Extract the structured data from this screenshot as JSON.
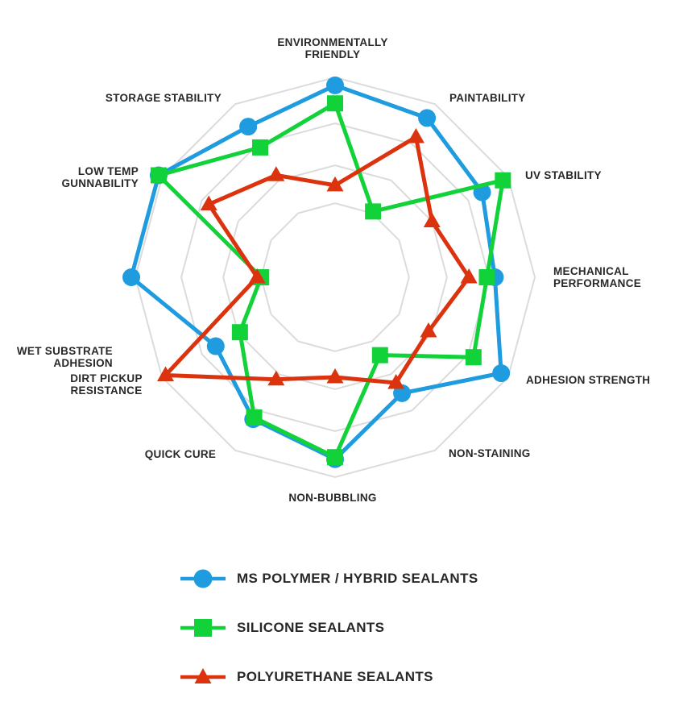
{
  "chart_data": {
    "type": "radar",
    "title": "",
    "axis_range": [
      0,
      5
    ],
    "grid_ring_values": [
      1.85,
      2.8,
      3.85,
      5
    ],
    "grid_color": "#DBDBDB",
    "grid_style": "concentric 12-sided polygons, no radial spokes",
    "legend_position": "bottom",
    "background_color": "#FFFFFF",
    "label_color": "#282828",
    "categories": [
      "ENVIRONMENTALLY FRIENDLY",
      "PAINTABILITY",
      "UV STABILITY",
      "MECHANICAL PERFORMANCE",
      "ADHESION STRENGTH",
      "NON-STAINING",
      "NON-BUBBLING",
      "QUICK CURE",
      "DIRT PICKUP RESISTANCE",
      "WET SUBSTRATE ADHESION",
      "LOW TEMP GUNNABILITY",
      "STORAGE STABILITY"
    ],
    "category_label_lines": [
      [
        "ENVIRONMENTALLY",
        "FRIENDLY"
      ],
      [
        "PAINTABILITY"
      ],
      [
        "UV STABILITY"
      ],
      [
        "MECHANICAL",
        "PERFORMANCE"
      ],
      [
        "ADHESION STRENGTH"
      ],
      [
        "NON-STAINING"
      ],
      [
        "NON-BUBBLING"
      ],
      [
        "QUICK CURE"
      ],
      [
        "DIRT PICKUP",
        "RESISTANCE"
      ],
      [
        "WET SUBSTRATE",
        "ADHESION"
      ],
      [
        "LOW TEMP",
        "GUNNABILITY"
      ],
      [
        "STORAGE STABILITY"
      ]
    ],
    "series": [
      {
        "name": "MS POLYMER / HYBRID SEALANTS",
        "marker": "circle",
        "color": "#1E9CDF",
        "values": [
          4.8,
          4.6,
          4.25,
          4.0,
          4.8,
          3.35,
          4.55,
          4.1,
          3.45,
          5.1,
          5.1,
          4.35
        ]
      },
      {
        "name": "SILICONE SEALANTS",
        "marker": "square",
        "color": "#12D23A",
        "values": [
          4.35,
          1.9,
          4.85,
          3.8,
          4.0,
          2.25,
          4.5,
          4.05,
          2.75,
          1.85,
          5.1,
          3.75
        ]
      },
      {
        "name": "POLYURETHANE SEALANTS",
        "marker": "triangle",
        "color": "#DC330F",
        "values": [
          2.3,
          4.05,
          2.8,
          3.35,
          2.7,
          3.05,
          2.5,
          2.95,
          4.9,
          1.95,
          3.65,
          2.95
        ]
      }
    ]
  }
}
